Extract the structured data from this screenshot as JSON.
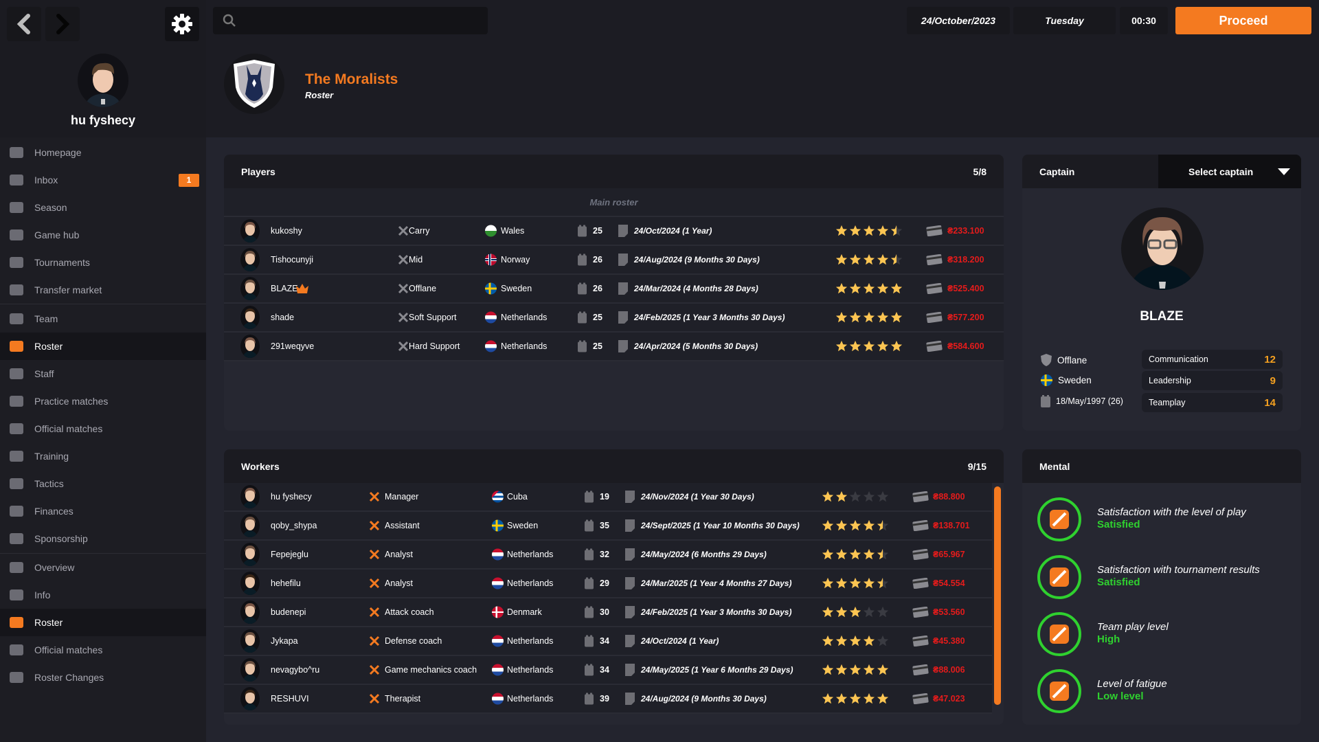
{
  "nav_controls": {
    "back": "chevron-left-icon",
    "forward": "chevron-right-icon",
    "settings": "gear-icon"
  },
  "profile": {
    "name": "hu fyshecy"
  },
  "search": {
    "placeholder": "",
    "value": ""
  },
  "topbar": {
    "date": "24/October/2023",
    "weekday": "Tuesday",
    "time": "00:30",
    "proceed_label": "Proceed"
  },
  "header": {
    "team_name": "The Moralists",
    "subtitle": "Roster"
  },
  "sidebar": {
    "items": [
      {
        "label": "Homepage",
        "icon": "home-icon"
      },
      {
        "label": "Inbox",
        "icon": "mail-icon",
        "badge": "1"
      },
      {
        "label": "Season",
        "icon": "calendar-icon"
      },
      {
        "label": "Game hub",
        "icon": "gamepad-icon"
      },
      {
        "label": "Tournaments",
        "icon": "trophy-icon"
      },
      {
        "label": "Transfer market",
        "icon": "transfer-icon"
      },
      {
        "label": "Team",
        "icon": "shield-icon"
      },
      {
        "label": "Roster",
        "icon": "people-icon",
        "active": true
      },
      {
        "label": "Staff",
        "icon": "staff-icon"
      },
      {
        "label": "Practice matches",
        "icon": "practice-icon"
      },
      {
        "label": "Official matches",
        "icon": "crossed-swords-icon"
      },
      {
        "label": "Training",
        "icon": "training-icon"
      },
      {
        "label": "Tactics",
        "icon": "tactics-icon"
      },
      {
        "label": "Finances",
        "icon": "money-icon"
      },
      {
        "label": "Sponsorship",
        "icon": "sponsor-icon"
      },
      {
        "label": "Overview",
        "icon": "shield-icon"
      },
      {
        "label": "Info",
        "icon": "info-icon"
      },
      {
        "label": "Roster",
        "icon": "people-icon",
        "active": true
      },
      {
        "label": "Official matches",
        "icon": "crossed-swords-icon"
      },
      {
        "label": "Roster Changes",
        "icon": "changes-icon"
      }
    ]
  },
  "players": {
    "title": "Players",
    "count": "5/8",
    "section_label": "Main roster",
    "rows": [
      {
        "name": "kukoshy",
        "role": "Carry",
        "country": "Wales",
        "age": "25",
        "contract": "24/Oct/2024",
        "duration": "(1 Year)",
        "rating": 4.5,
        "salary": "₴233.100"
      },
      {
        "name": "Tishocunyji",
        "role": "Mid",
        "country": "Norway",
        "age": "26",
        "contract": "24/Aug/2024",
        "duration": "(9 Months 30 Days)",
        "rating": 4.5,
        "salary": "₴318.200"
      },
      {
        "name": "BLAZE",
        "role": "Offlane",
        "country": "Sweden",
        "age": "26",
        "contract": "24/Mar/2024",
        "duration": "(4 Months 28 Days)",
        "rating": 5,
        "salary": "₴525.400",
        "captain": true
      },
      {
        "name": "shade",
        "role": "Soft Support",
        "country": "Netherlands",
        "age": "25",
        "contract": "24/Feb/2025",
        "duration": "(1 Year 3 Months 30 Days)",
        "rating": 5,
        "salary": "₴577.200"
      },
      {
        "name": "291weqyve",
        "role": "Hard Support",
        "country": "Netherlands",
        "age": "25",
        "contract": "24/Apr/2024",
        "duration": "(5 Months 30 Days)",
        "rating": 5,
        "salary": "₴584.600"
      }
    ]
  },
  "workers": {
    "title": "Workers",
    "count": "9/15",
    "rows": [
      {
        "name": "hu fyshecy",
        "role": "Manager",
        "country": "Cuba",
        "age": "19",
        "contract": "24/Nov/2024",
        "duration": "(1 Year 30 Days)",
        "rating": 2,
        "salary": "₴88.800"
      },
      {
        "name": "qoby_shypa",
        "role": "Assistant",
        "country": "Sweden",
        "age": "35",
        "contract": "24/Sept/2025",
        "duration": "(1 Year 10 Months 30 Days)",
        "rating": 4.5,
        "salary": "₴138.701"
      },
      {
        "name": "Fepejeglu",
        "role": "Analyst",
        "country": "Netherlands",
        "age": "32",
        "contract": "24/May/2024",
        "duration": "(6 Months 29 Days)",
        "rating": 4.5,
        "salary": "₴65.967"
      },
      {
        "name": "hehefilu",
        "role": "Analyst",
        "country": "Netherlands",
        "age": "29",
        "contract": "24/Mar/2025",
        "duration": "(1 Year 4 Months 27 Days)",
        "rating": 4.5,
        "salary": "₴54.554"
      },
      {
        "name": "budenepi",
        "role": "Attack coach",
        "country": "Denmark",
        "age": "30",
        "contract": "24/Feb/2025",
        "duration": "(1 Year 3 Months 30 Days)",
        "rating": 3,
        "salary": "₴53.560"
      },
      {
        "name": "Jykapa",
        "role": "Defense coach",
        "country": "Netherlands",
        "age": "34",
        "contract": "24/Oct/2024",
        "duration": "(1 Year)",
        "rating": 4,
        "salary": "₴45.380"
      },
      {
        "name": "nevagybo^ru",
        "role": "Game mechanics coach",
        "country": "Netherlands",
        "age": "34",
        "contract": "24/May/2025",
        "duration": "(1 Year 6 Months 29 Days)",
        "rating": 5,
        "salary": "₴88.006"
      },
      {
        "name": "RESHUVI",
        "role": "Therapist",
        "country": "Netherlands",
        "age": "39",
        "contract": "24/Aug/2024",
        "duration": "(9 Months 30 Days)",
        "rating": 5,
        "salary": "₴47.023"
      }
    ]
  },
  "captain": {
    "title": "Captain",
    "select_label": "Select captain",
    "name": "BLAZE",
    "role": "Offlane",
    "country": "Sweden",
    "birth": "18/May/1997 (26)",
    "stats": [
      {
        "label": "Communication",
        "value": "12"
      },
      {
        "label": "Leadership",
        "value": "9"
      },
      {
        "label": "Teamplay",
        "value": "14"
      }
    ]
  },
  "mental": {
    "title": "Mental",
    "items": [
      {
        "label": "Satisfaction with the level of play",
        "value": "Satisfied",
        "icon": "level-icon"
      },
      {
        "label": "Satisfaction with tournament results",
        "value": "Satisfied",
        "icon": "trophy-icon"
      },
      {
        "label": "Team play level",
        "value": "High",
        "icon": "handshake-icon"
      },
      {
        "label": "Level of fatigue",
        "value": "Low level",
        "icon": "heart-bandage-icon"
      }
    ]
  },
  "colors": {
    "accent": "#f47a20",
    "salary": "#e51b1b",
    "positive": "#2fd12f",
    "star": "#fcc552",
    "stat_value": "#f4a020"
  }
}
